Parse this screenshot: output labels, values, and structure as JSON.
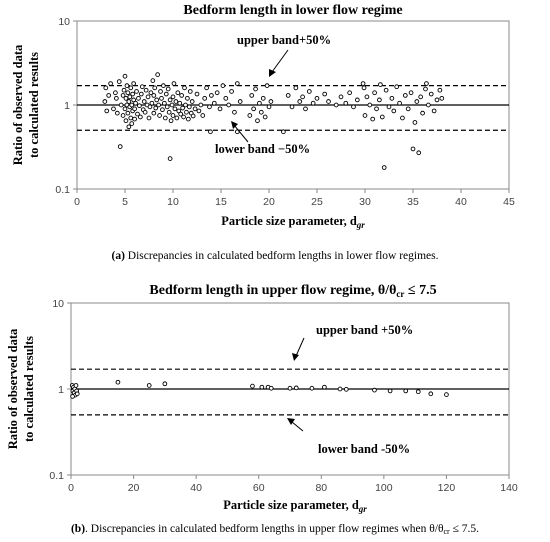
{
  "chart_data": [
    {
      "type": "scatter",
      "title": "Bedform length in lower flow regime",
      "xlabel": "Particle size parameter, d",
      "xlabel_sub": "gr",
      "ylabel_line1": "Ratio of observed data",
      "ylabel_line2": "to calculated results",
      "xlim": [
        0,
        45
      ],
      "ylim": [
        0.1,
        10
      ],
      "yscale": "log",
      "xticks": [
        0,
        5,
        10,
        15,
        20,
        25,
        30,
        35,
        40,
        45
      ],
      "yticks": [
        0.1,
        1,
        10
      ],
      "xtick_labels": [
        "0",
        "5",
        "10",
        "15",
        "20",
        "25",
        "30",
        "35",
        "40",
        "45"
      ],
      "ytick_labels": [
        "0.1",
        "1",
        "10"
      ],
      "reference_lines": [
        {
          "y": 1,
          "style": "solid"
        },
        {
          "y": 1.7,
          "style": "dashed",
          "label": "upper band+50%"
        },
        {
          "y": 0.5,
          "style": "dashed",
          "label": "lower band −50%"
        }
      ],
      "annotations": {
        "upper": "upper band+50%",
        "lower": "lower band −50%"
      },
      "points": [
        [
          2.9,
          1.1
        ],
        [
          3.0,
          1.6
        ],
        [
          3.1,
          0.85
        ],
        [
          3.3,
          1.3
        ],
        [
          3.5,
          1.8
        ],
        [
          3.8,
          0.9
        ],
        [
          4.0,
          1.4
        ],
        [
          4.1,
          1.2
        ],
        [
          4.2,
          0.8
        ],
        [
          4.4,
          1.9
        ],
        [
          4.6,
          1.0
        ],
        [
          4.8,
          1.3
        ],
        [
          4.8,
          0.75
        ],
        [
          4.9,
          1.5
        ],
        [
          5.0,
          0.9
        ],
        [
          5.0,
          2.2
        ],
        [
          5.1,
          1.2
        ],
        [
          5.1,
          0.65
        ],
        [
          5.2,
          1.0
        ],
        [
          5.2,
          1.7
        ],
        [
          5.3,
          0.8
        ],
        [
          5.3,
          1.4
        ],
        [
          5.4,
          1.1
        ],
        [
          5.4,
          0.55
        ],
        [
          5.5,
          0.95
        ],
        [
          5.5,
          1.25
        ],
        [
          5.6,
          0.7
        ],
        [
          5.6,
          1.6
        ],
        [
          5.7,
          1.0
        ],
        [
          5.7,
          0.6
        ],
        [
          5.8,
          1.35
        ],
        [
          5.8,
          0.85
        ],
        [
          5.9,
          1.15
        ],
        [
          5.9,
          1.8
        ],
        [
          6.0,
          0.9
        ],
        [
          6.0,
          0.68
        ],
        [
          6.1,
          1.05
        ],
        [
          6.2,
          1.45
        ],
        [
          6.3,
          0.78
        ],
        [
          6.4,
          1.2
        ],
        [
          6.5,
          0.98
        ],
        [
          6.6,
          0.72
        ],
        [
          6.7,
          1.35
        ],
        [
          6.8,
          1.65
        ],
        [
          6.9,
          0.88
        ],
        [
          7.0,
          1.1
        ],
        [
          7.1,
          0.82
        ],
        [
          7.2,
          1.5
        ],
        [
          7.3,
          1.0
        ],
        [
          7.4,
          1.25
        ],
        [
          7.5,
          0.7
        ],
        [
          7.6,
          0.95
        ],
        [
          7.7,
          1.4
        ],
        [
          7.8,
          1.05
        ],
        [
          7.9,
          1.95
        ],
        [
          8.0,
          0.8
        ],
        [
          8.0,
          1.3
        ],
        [
          8.1,
          1.6
        ],
        [
          8.2,
          0.92
        ],
        [
          8.3,
          1.15
        ],
        [
          8.4,
          2.3
        ],
        [
          8.5,
          1.0
        ],
        [
          8.6,
          0.75
        ],
        [
          8.7,
          1.45
        ],
        [
          8.8,
          1.2
        ],
        [
          8.9,
          0.88
        ],
        [
          9.0,
          1.7
        ],
        [
          9.1,
          1.05
        ],
        [
          9.2,
          0.7
        ],
        [
          9.3,
          1.35
        ],
        [
          9.4,
          0.95
        ],
        [
          9.5,
          1.55
        ],
        [
          9.6,
          0.82
        ],
        [
          9.7,
          1.15
        ],
        [
          9.8,
          0.65
        ],
        [
          9.9,
          1.0
        ],
        [
          10.0,
          1.25
        ],
        [
          10.0,
          0.75
        ],
        [
          10.1,
          1.8
        ],
        [
          10.2,
          0.9
        ],
        [
          10.3,
          1.1
        ],
        [
          10.4,
          0.7
        ],
        [
          10.5,
          1.4
        ],
        [
          10.6,
          0.85
        ],
        [
          10.7,
          1.05
        ],
        [
          10.8,
          0.78
        ],
        [
          10.9,
          1.3
        ],
        [
          11.0,
          0.92
        ],
        [
          11.1,
          0.72
        ],
        [
          11.2,
          1.6
        ],
        [
          11.3,
          1.0
        ],
        [
          11.4,
          0.82
        ],
        [
          11.5,
          1.2
        ],
        [
          11.6,
          0.68
        ],
        [
          11.7,
          0.95
        ],
        [
          11.8,
          1.45
        ],
        [
          11.9,
          0.8
        ],
        [
          12.0,
          1.1
        ],
        [
          12.1,
          0.74
        ],
        [
          12.3,
          0.9
        ],
        [
          12.5,
          1.35
        ],
        [
          12.7,
          0.85
        ],
        [
          12.9,
          1.0
        ],
        [
          13.1,
          0.75
        ],
        [
          13.3,
          1.2
        ],
        [
          13.5,
          1.6
        ],
        [
          13.8,
          0.95
        ],
        [
          14.0,
          1.3
        ],
        [
          14.3,
          1.05
        ],
        [
          14.6,
          1.4
        ],
        [
          14.9,
          0.9
        ],
        [
          15.2,
          1.7
        ],
        [
          15.5,
          1.2
        ],
        [
          15.8,
          1.0
        ],
        [
          16.1,
          1.45
        ],
        [
          16.4,
          0.82
        ],
        [
          16.7,
          1.8
        ],
        [
          17.0,
          1.1
        ],
        [
          18.0,
          0.75
        ],
        [
          18.2,
          1.3
        ],
        [
          18.4,
          0.9
        ],
        [
          18.6,
          1.55
        ],
        [
          18.8,
          0.65
        ],
        [
          19.0,
          1.05
        ],
        [
          19.2,
          0.82
        ],
        [
          19.4,
          1.2
        ],
        [
          19.6,
          0.72
        ],
        [
          19.8,
          1.7
        ],
        [
          20.0,
          0.95
        ],
        [
          20.2,
          1.1
        ],
        [
          4.5,
          0.32
        ],
        [
          9.7,
          0.23
        ],
        [
          13.9,
          0.48
        ],
        [
          16.7,
          0.48
        ],
        [
          21.5,
          0.48
        ],
        [
          22.0,
          1.3
        ],
        [
          22.4,
          0.95
        ],
        [
          22.8,
          1.6
        ],
        [
          23.2,
          1.1
        ],
        [
          23.5,
          1.25
        ],
        [
          23.8,
          0.9
        ],
        [
          24.2,
          1.45
        ],
        [
          24.6,
          1.05
        ],
        [
          25.0,
          1.2
        ],
        [
          25.8,
          1.35
        ],
        [
          26.2,
          1.1
        ],
        [
          27.0,
          1.0
        ],
        [
          27.5,
          1.25
        ],
        [
          28.0,
          1.05
        ],
        [
          28.4,
          1.4
        ],
        [
          28.8,
          0.95
        ],
        [
          29.2,
          1.15
        ],
        [
          29.8,
          1.8
        ],
        [
          30.0,
          0.75
        ],
        [
          30.2,
          1.25
        ],
        [
          30.5,
          1.0
        ],
        [
          30.8,
          0.68
        ],
        [
          31.0,
          1.4
        ],
        [
          31.2,
          0.9
        ],
        [
          31.5,
          1.15
        ],
        [
          31.8,
          0.72
        ],
        [
          32.0,
          0.18
        ],
        [
          32.2,
          1.5
        ],
        [
          32.5,
          0.95
        ],
        [
          32.8,
          1.2
        ],
        [
          33.0,
          0.85
        ],
        [
          33.3,
          1.65
        ],
        [
          33.6,
          1.05
        ],
        [
          33.9,
          0.7
        ],
        [
          34.2,
          1.3
        ],
        [
          34.5,
          0.9
        ],
        [
          34.8,
          1.4
        ],
        [
          35.0,
          0.3
        ],
        [
          35.2,
          0.62
        ],
        [
          35.4,
          1.1
        ],
        [
          35.6,
          0.27
        ],
        [
          35.8,
          1.25
        ],
        [
          36.0,
          0.8
        ],
        [
          36.3,
          1.55
        ],
        [
          36.6,
          1.0
        ],
        [
          36.9,
          1.35
        ],
        [
          37.2,
          0.85
        ],
        [
          37.5,
          1.15
        ],
        [
          37.8,
          1.5
        ],
        [
          38.0,
          1.2
        ],
        [
          36.4,
          1.8
        ],
        [
          31.6,
          1.75
        ],
        [
          29.9,
          1.6
        ]
      ]
    },
    {
      "type": "scatter",
      "title": "Bedform length in upper flow regime, θ/θ",
      "title_sub": "cr",
      "title_tail": " ≤ 7.5",
      "xlabel": "Particle size parameter, d",
      "xlabel_sub": "gr",
      "ylabel_line1": "Ratio of observed data",
      "ylabel_line2": "to calculated results",
      "xlim": [
        0,
        140
      ],
      "ylim": [
        0.1,
        10
      ],
      "yscale": "log",
      "xticks": [
        0,
        20,
        40,
        60,
        80,
        100,
        120,
        140
      ],
      "yticks": [
        0.1,
        1,
        10
      ],
      "xtick_labels": [
        "0",
        "20",
        "40",
        "60",
        "80",
        "100",
        "120",
        "140"
      ],
      "ytick_labels": [
        "0.1",
        "1",
        "10"
      ],
      "reference_lines": [
        {
          "y": 1,
          "style": "solid"
        },
        {
          "y": 1.7,
          "style": "dashed",
          "label": "upper band +50%"
        },
        {
          "y": 0.5,
          "style": "dashed",
          "label": "lower band -50%"
        }
      ],
      "annotations": {
        "upper": "upper band +50%",
        "lower": "lower band -50%"
      },
      "points": [
        [
          0.4,
          1.1
        ],
        [
          0.6,
          0.95
        ],
        [
          0.8,
          1.05
        ],
        [
          1.0,
          0.9
        ],
        [
          1.2,
          1.0
        ],
        [
          1.4,
          0.85
        ],
        [
          1.6,
          1.1
        ],
        [
          1.8,
          0.95
        ],
        [
          2.0,
          0.88
        ],
        [
          0.5,
          0.82
        ],
        [
          15,
          1.2
        ],
        [
          25,
          1.1
        ],
        [
          30,
          1.15
        ],
        [
          58,
          1.08
        ],
        [
          61,
          1.05
        ],
        [
          63,
          1.05
        ],
        [
          64,
          1.02
        ],
        [
          70,
          1.02
        ],
        [
          72,
          1.03
        ],
        [
          77,
          1.02
        ],
        [
          81,
          1.05
        ],
        [
          86,
          1.0
        ],
        [
          88,
          0.99
        ],
        [
          97,
          0.97
        ],
        [
          102,
          0.95
        ],
        [
          107,
          0.95
        ],
        [
          111,
          0.93
        ],
        [
          115,
          0.88
        ],
        [
          120,
          0.86
        ]
      ]
    }
  ],
  "captions": [
    {
      "label": "(a)",
      "text": " Discrepancies in calculated bedform lengths in lower flow regimes."
    },
    {
      "label": "(b)",
      "text": ". Discrepancies in calculated bedform lengths in upper flow regimes when θ/θ",
      "sub": "cr",
      "tail": " ≤ 7.5."
    }
  ]
}
